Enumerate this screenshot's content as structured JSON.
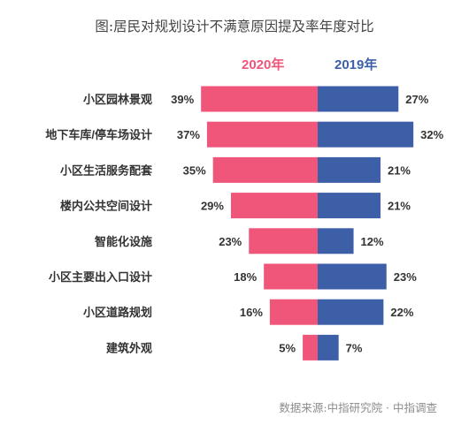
{
  "colors": {
    "series_2020": "#f0557a",
    "series_2019": "#3d5fa8",
    "text": "#333333"
  },
  "chart_data": {
    "type": "bar",
    "orientation": "diverging-horizontal",
    "title": "图:居民对规划设计不满意原因提及率年度对比",
    "source": "数据来源:中指研究院 · 中指调查",
    "categories": [
      "小区园林景观",
      "地下车库/停车场设计",
      "小区生活服务配套",
      "楼内公共空间设计",
      "智能化设施",
      "小区主要出入口设计",
      "小区道路规划",
      "建筑外观"
    ],
    "series": [
      {
        "name": "2020年",
        "side": "left",
        "values": [
          39,
          37,
          35,
          29,
          23,
          18,
          16,
          5
        ],
        "labels": [
          "39%",
          "37%",
          "35%",
          "29%",
          "23%",
          "18%",
          "16%",
          "5%"
        ]
      },
      {
        "name": "2019年",
        "side": "right",
        "values": [
          27,
          32,
          21,
          21,
          12,
          23,
          22,
          7
        ],
        "labels": [
          "27%",
          "32%",
          "21%",
          "21%",
          "12%",
          "23%",
          "22%",
          "7%"
        ]
      }
    ],
    "unit": "%",
    "grid": false
  }
}
